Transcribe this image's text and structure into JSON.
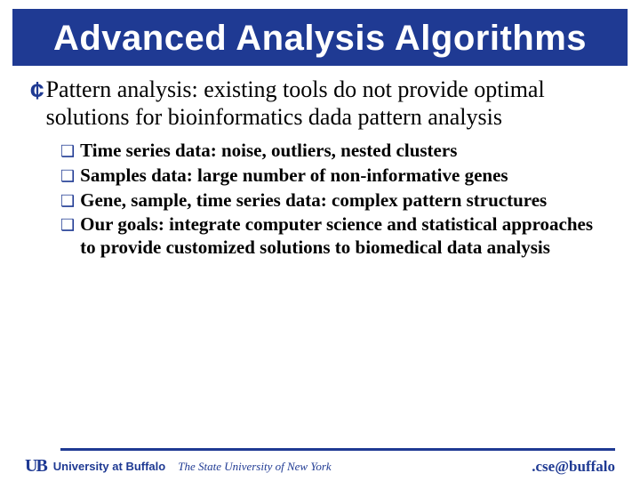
{
  "title": "Advanced Analysis Algorithms",
  "main_bullet_glyph": "¢",
  "main_text": "Pattern analysis: existing tools do not provide optimal solutions for bioinformatics dada pattern analysis",
  "sub_bullet_glyph": "❑",
  "sub_items": [
    "Time series data: noise, outliers, nested clusters",
    "Samples data: large number of non-informative genes",
    "Gene, sample, time series data: complex pattern structures",
    "Our goals: integrate computer science and statistical approaches to provide customized solutions to biomedical data analysis"
  ],
  "footer": {
    "logo": "UB",
    "university": "University at Buffalo",
    "suny": "The State University of New York",
    "cse": ".cse@buffalo"
  },
  "colors": {
    "brand": "#1f3a93",
    "text": "#000000",
    "bg": "#ffffff"
  }
}
